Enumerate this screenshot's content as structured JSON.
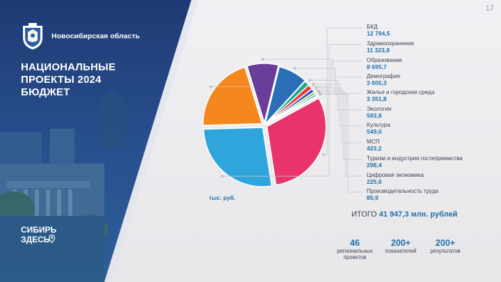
{
  "page_number": "17",
  "brand": {
    "name": "Новосибирская область"
  },
  "title_lines": [
    "НАЦИОНАЛЬНЫЕ",
    "ПРОЕКТЫ 2024",
    "БЮДЖЕТ"
  ],
  "slogan_lines": [
    "СИБИРЬ",
    "ЗДЕСЬ"
  ],
  "unit_label": "тыс. руб.",
  "colors": {
    "accent": "#1f6fae",
    "navy": "#1f3a73",
    "text": "#3b3e52"
  },
  "chart_data": {
    "type": "pie",
    "items": [
      {
        "name": "БКД",
        "value_label": "12 794,5",
        "value": 12794.5,
        "color": "#e8346a"
      },
      {
        "name": "Здравоохранение",
        "value_label": "11 323,8",
        "value": 11323.8,
        "color": "#2fa6db"
      },
      {
        "name": "Образование",
        "value_label": "8 695,7",
        "value": 8695.7,
        "color": "#f5871f"
      },
      {
        "name": "Демография",
        "value_label": "3 605,3",
        "value": 3605.3,
        "color": "#6a3d9a"
      },
      {
        "name": "Жилье и городская среда",
        "value_label": "3 351,8",
        "value": 3351.8,
        "color": "#2a6fb5"
      },
      {
        "name": "Экология",
        "value_label": "593,8",
        "value": 593.8,
        "color": "#1faa8a"
      },
      {
        "name": "Культура",
        "value_label": "549,0",
        "value": 549.0,
        "color": "#e53935"
      },
      {
        "name": "МСП",
        "value_label": "423,2",
        "value": 423.2,
        "color": "#3f51b5"
      },
      {
        "name": "Туризм и индустрия гостеприимства",
        "value_label": "298,4",
        "value": 298.4,
        "color": "#8bc34a"
      },
      {
        "name": "Цифровая экономика",
        "value_label": "225,6",
        "value": 225.6,
        "color": "#00acc1"
      },
      {
        "name": "Производительность труда",
        "value_label": "85,9",
        "value": 85.9,
        "color": "#ff9800"
      }
    ]
  },
  "total": {
    "label": "ИТОГО",
    "value": "41 947,3 млн. рублей"
  },
  "stats": [
    {
      "number": "46",
      "label_lines": [
        "региональных",
        "проектов"
      ]
    },
    {
      "number": "200+",
      "label_lines": [
        "показателей"
      ]
    },
    {
      "number": "200+",
      "label_lines": [
        "результатов"
      ]
    }
  ]
}
